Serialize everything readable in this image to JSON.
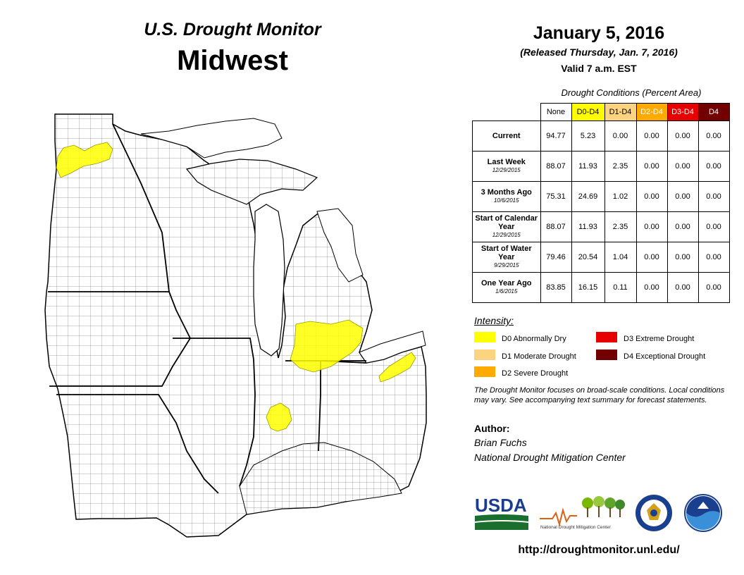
{
  "header": {
    "title": "U.S. Drought Monitor",
    "region": "Midwest",
    "date": "January 5, 2016",
    "released": "(Released Thursday, Jan. 7, 2016)",
    "valid": "Valid  7 a.m. EST"
  },
  "table": {
    "caption": "Drought Conditions (Percent Area)",
    "columns": [
      {
        "label": "None",
        "color": "#ffffff",
        "text_color": "#000000"
      },
      {
        "label": "D0-D4",
        "color": "#ffff00",
        "text_color": "#000000"
      },
      {
        "label": "D1-D4",
        "color": "#fcd37f",
        "text_color": "#000000"
      },
      {
        "label": "D2-D4",
        "color": "#ffaa00",
        "text_color": "#ffffff"
      },
      {
        "label": "D3-D4",
        "color": "#e60000",
        "text_color": "#ffffff"
      },
      {
        "label": "D4",
        "color": "#730000",
        "text_color": "#ffffff"
      }
    ],
    "rows": [
      {
        "label": "Current",
        "sub": "",
        "values": [
          "94.77",
          "5.23",
          "0.00",
          "0.00",
          "0.00",
          "0.00"
        ]
      },
      {
        "label": "Last Week",
        "sub": "12/29/2015",
        "values": [
          "88.07",
          "11.93",
          "2.35",
          "0.00",
          "0.00",
          "0.00"
        ]
      },
      {
        "label": "3 Months Ago",
        "sub": "10/6/2015",
        "values": [
          "75.31",
          "24.69",
          "1.02",
          "0.00",
          "0.00",
          "0.00"
        ]
      },
      {
        "label": "Start of Calendar Year",
        "sub": "12/29/2015",
        "values": [
          "88.07",
          "11.93",
          "2.35",
          "0.00",
          "0.00",
          "0.00"
        ]
      },
      {
        "label": "Start of Water Year",
        "sub": "9/29/2015",
        "values": [
          "79.46",
          "20.54",
          "1.04",
          "0.00",
          "0.00",
          "0.00"
        ]
      },
      {
        "label": "One Year Ago",
        "sub": "1/6/2015",
        "values": [
          "83.85",
          "16.15",
          "0.11",
          "0.00",
          "0.00",
          "0.00"
        ]
      }
    ]
  },
  "legend": {
    "title": "Intensity:",
    "items": [
      {
        "label": "D0 Abnormally Dry",
        "color": "#ffff00"
      },
      {
        "label": "D1 Moderate Drought",
        "color": "#fcd37f"
      },
      {
        "label": "D2 Severe Drought",
        "color": "#ffaa00"
      },
      {
        "label": "D3 Extreme Drought",
        "color": "#e60000"
      },
      {
        "label": "D4 Exceptional Drought",
        "color": "#730000"
      }
    ]
  },
  "note": "The Drought Monitor focuses on broad-scale conditions. Local conditions may vary. See accompanying text summary for forecast statements.",
  "author": {
    "heading": "Author:",
    "name": "Brian Fuchs",
    "org": "National Drought Mitigation Center"
  },
  "logos": {
    "usda": "USDA",
    "ndmc": "National Drought Mitigation Center"
  },
  "url": "http://droughtmonitor.unl.edu/",
  "map": {
    "drought_areas": [
      {
        "category": "D0",
        "location": "northwest Minnesota"
      },
      {
        "category": "D0",
        "location": "southeast Michigan"
      },
      {
        "category": "D0",
        "location": "northeast Ohio"
      },
      {
        "category": "D0",
        "location": "central Indiana"
      }
    ]
  }
}
